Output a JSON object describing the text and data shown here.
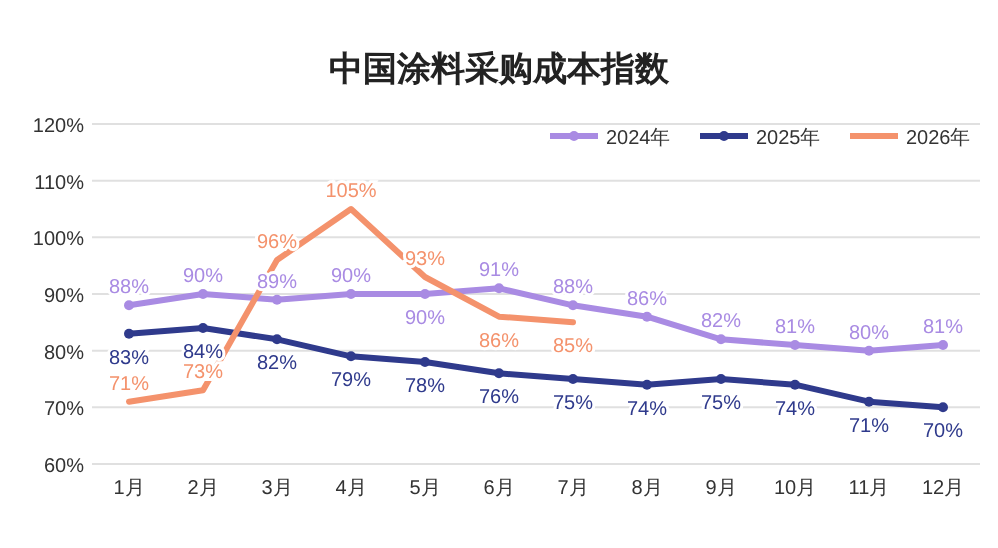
{
  "chart_data": {
    "type": "line",
    "title": "中国涂料采购成本指数",
    "categories": [
      "1月",
      "2月",
      "3月",
      "4月",
      "5月",
      "6月",
      "7月",
      "8月",
      "9月",
      "10月",
      "11月",
      "12月"
    ],
    "series": [
      {
        "name": "2024年",
        "color": "#a98be3",
        "marker": "circle",
        "values": [
          88,
          90,
          89,
          90,
          90,
          91,
          88,
          86,
          82,
          81,
          80,
          81
        ],
        "value_labels": [
          "88%",
          "90%",
          "89%",
          "90%",
          "90%",
          "91%",
          "88%",
          "86%",
          "82%",
          "81%",
          "80%",
          "81%"
        ]
      },
      {
        "name": "2025年",
        "color": "#2f3a8c",
        "marker": "circle",
        "values": [
          83,
          84,
          82,
          79,
          78,
          76,
          75,
          74,
          75,
          74,
          71,
          70
        ],
        "value_labels": [
          "83%",
          "84%",
          "82%",
          "79%",
          "78%",
          "76%",
          "75%",
          "74%",
          "75%",
          "74%",
          "71%",
          "70%"
        ]
      },
      {
        "name": "2026年",
        "color": "#f4926c",
        "marker": "none",
        "values": [
          71,
          73,
          96,
          105,
          93,
          86,
          85,
          null,
          null,
          null,
          null,
          null
        ],
        "value_labels": [
          "71%",
          "73%",
          "96%",
          "105%",
          "93%",
          "86%",
          "85%",
          null,
          null,
          null,
          null,
          null
        ]
      }
    ],
    "ylim": [
      60,
      120
    ],
    "yticks": [
      {
        "value": 60,
        "label": "60%"
      },
      {
        "value": 70,
        "label": "70%"
      },
      {
        "value": 80,
        "label": "80%"
      },
      {
        "value": 90,
        "label": "90%"
      },
      {
        "value": 100,
        "label": "100%"
      },
      {
        "value": 110,
        "label": "110%"
      },
      {
        "value": 120,
        "label": "120%"
      }
    ],
    "grid": "y",
    "legend": "top right"
  }
}
